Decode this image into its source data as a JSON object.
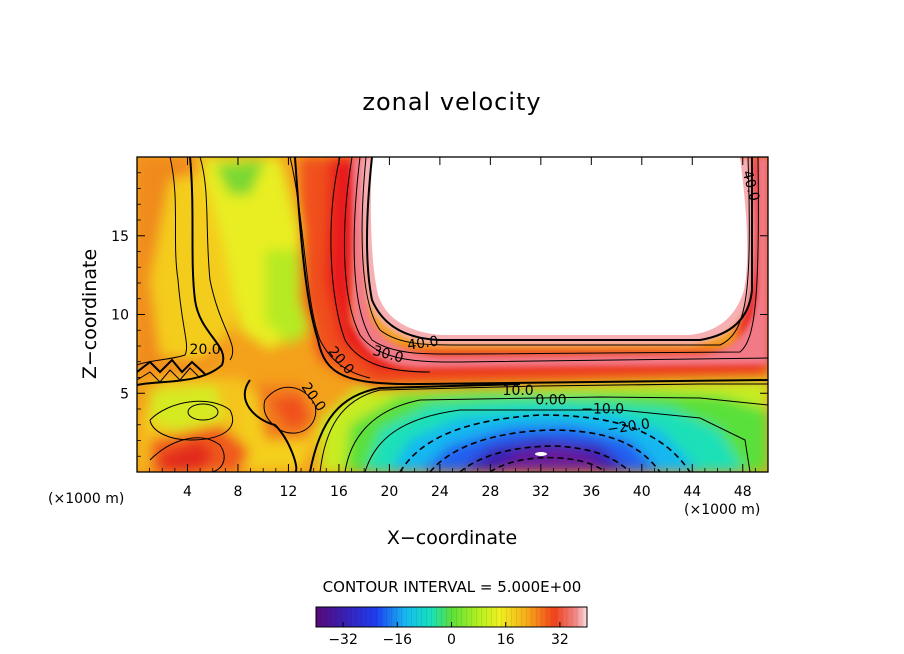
{
  "chart_data": {
    "type": "heatmap",
    "title": "zonal velocity",
    "xlabel": "X−coordinate",
    "ylabel": "Z−coordinate",
    "x_unit_left": "(×1000 m)",
    "x_unit_right": "(×1000 m)",
    "xlim": [
      0,
      50
    ],
    "ylim": [
      0,
      20
    ],
    "xticks": [
      4,
      8,
      12,
      16,
      20,
      24,
      28,
      32,
      36,
      40,
      44,
      48
    ],
    "yticks": [
      5,
      10,
      15
    ],
    "contour_interval_text": "CONTOUR INTERVAL = 5.000E+00",
    "contour_interval": 5,
    "colorbar": {
      "range": [
        -40,
        40
      ],
      "ticks": [
        -32,
        -16,
        0,
        16,
        32
      ],
      "tick_labels": [
        "−32",
        "−16",
        "0",
        "16",
        "32"
      ]
    },
    "contour_labels": [
      {
        "text": "40.0",
        "x": 48.3,
        "y": 18.1,
        "angle": 75
      },
      {
        "text": "40.0",
        "x": 22.7,
        "y": 7.9,
        "angle": -8
      },
      {
        "text": "30.0",
        "x": 19.8,
        "y": 7.2,
        "angle": 15
      },
      {
        "text": "20.0",
        "x": 15.9,
        "y": 6.9,
        "angle": 50
      },
      {
        "text": "20.0",
        "x": 5.4,
        "y": 7.5,
        "angle": 0
      },
      {
        "text": "20.0",
        "x": 13.7,
        "y": 4.6,
        "angle": 55
      },
      {
        "text": "10.0",
        "x": 30.2,
        "y": 4.9,
        "angle": 0
      },
      {
        "text": "0.00",
        "x": 32.8,
        "y": 4.3,
        "angle": 0
      },
      {
        "text": "−10.0",
        "x": 36.9,
        "y": 3.7,
        "angle": 0
      },
      {
        "text": "−20.0",
        "x": 39.0,
        "y": 2.6,
        "angle": -8
      }
    ],
    "features": [
      {
        "kind": "jet_core_max",
        "x_range": [
          18,
          48
        ],
        "z_range": [
          8,
          20
        ],
        "value": "> 40"
      },
      {
        "kind": "reverse_flow_min",
        "x": 32.5,
        "z": 1.0,
        "value": -35
      },
      {
        "kind": "local_max",
        "x": 5.5,
        "z": 1.0,
        "value": 30
      }
    ]
  }
}
